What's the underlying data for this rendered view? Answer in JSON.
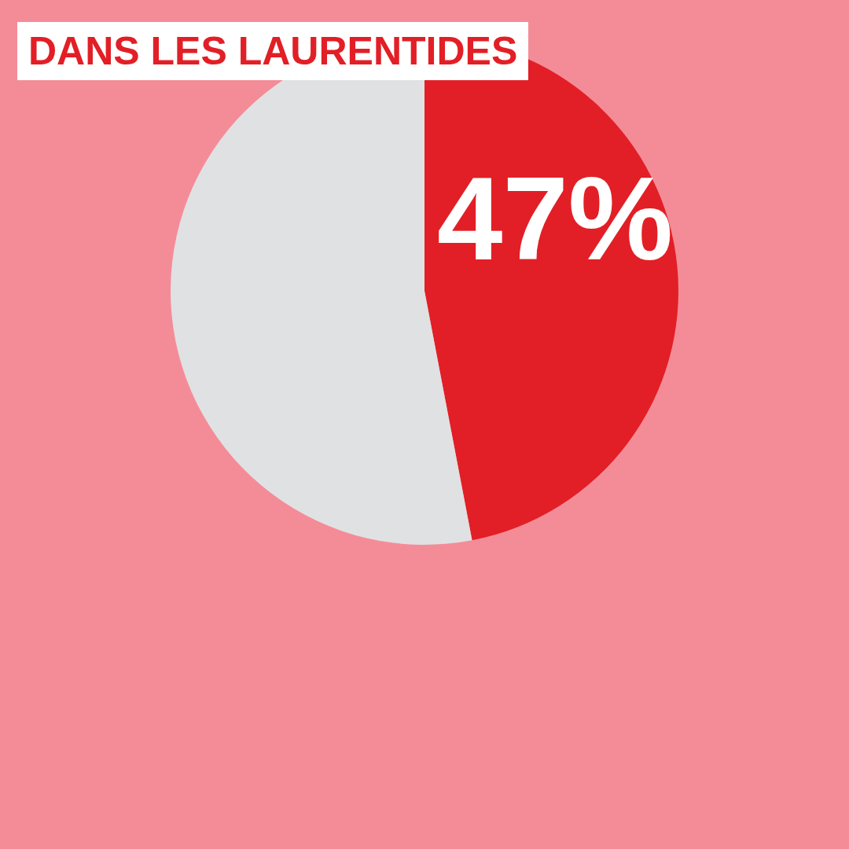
{
  "chart_data": {
    "type": "pie",
    "title": "DANS LES LAURENTIDES",
    "categories": [
      null,
      null
    ],
    "values": [
      47,
      53
    ],
    "colors": [
      "#e21f26",
      "#e0e1e3"
    ],
    "value_labels": [
      "47%",
      null
    ]
  }
}
